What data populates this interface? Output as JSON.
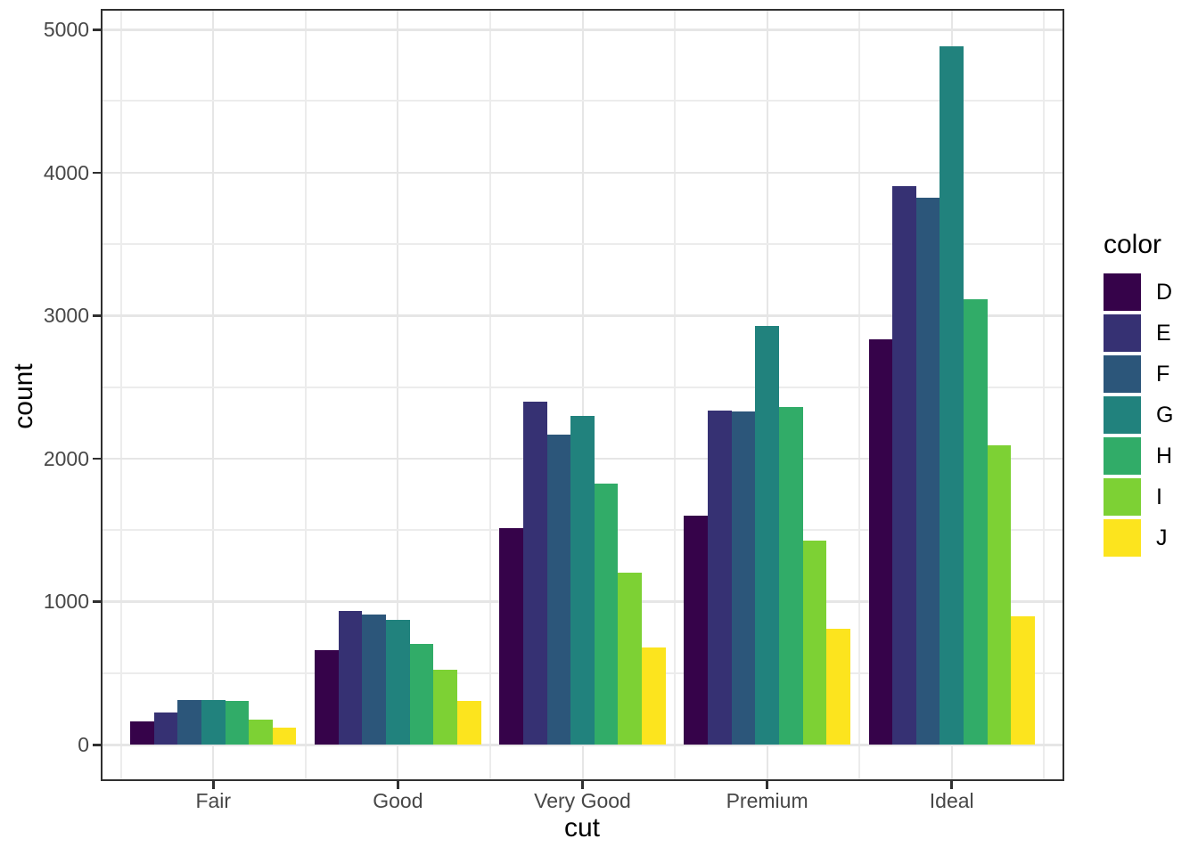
{
  "chart_data": {
    "type": "bar",
    "bar_mode": "dodge",
    "title": "",
    "xlabel": "cut",
    "ylabel": "count",
    "categories": [
      "Fair",
      "Good",
      "Very Good",
      "Premium",
      "Ideal"
    ],
    "series": [
      {
        "name": "D",
        "color": "#36034A",
        "values": [
          163,
          662,
          1513,
          1603,
          2834
        ]
      },
      {
        "name": "E",
        "color": "#363173",
        "values": [
          224,
          933,
          2400,
          2337,
          3903
        ]
      },
      {
        "name": "F",
        "color": "#2C567A",
        "values": [
          312,
          909,
          2164,
          2331,
          3826
        ]
      },
      {
        "name": "G",
        "color": "#21827D",
        "values": [
          314,
          871,
          2299,
          2924,
          4884
        ]
      },
      {
        "name": "H",
        "color": "#31AC68",
        "values": [
          303,
          702,
          1824,
          2360,
          3115
        ]
      },
      {
        "name": "I",
        "color": "#7DD134",
        "values": [
          175,
          522,
          1204,
          1428,
          2093
        ]
      },
      {
        "name": "J",
        "color": "#FCE41E",
        "values": [
          119,
          307,
          678,
          808,
          896
        ]
      }
    ],
    "legend": {
      "title": "color",
      "position": "right",
      "entries": [
        "D",
        "E",
        "F",
        "G",
        "H",
        "I",
        "J"
      ]
    },
    "axes": {
      "y_major_ticks": [
        0,
        1000,
        2000,
        3000,
        4000,
        5000
      ],
      "y_tick_labels": [
        "0",
        "1000",
        "2000",
        "3000",
        "4000",
        "5000"
      ],
      "y_minor_gridlines": [
        500,
        1500,
        2500,
        3500,
        4500
      ],
      "ylim": [
        -244,
        5128
      ],
      "grid": "major-and-minor"
    }
  },
  "theme": {
    "background": "#FFFFFF",
    "panel_border": "#303030",
    "tick_color": "#303030",
    "grid_major": "#E6E6E6",
    "grid_minor": "#ECECEC",
    "tick_label_color": "#474747",
    "title_color": "#000000"
  }
}
